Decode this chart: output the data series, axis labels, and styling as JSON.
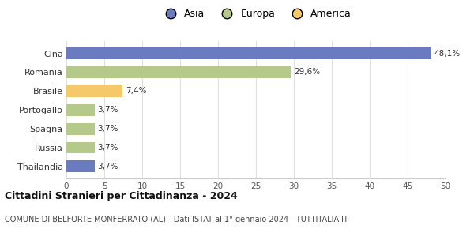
{
  "categories": [
    "Cina",
    "Romania",
    "Brasile",
    "Portogallo",
    "Spagna",
    "Russia",
    "Thailandia"
  ],
  "values": [
    48.1,
    29.6,
    7.4,
    3.7,
    3.7,
    3.7,
    3.7
  ],
  "labels": [
    "48,1%",
    "29,6%",
    "7,4%",
    "3,7%",
    "3,7%",
    "3,7%",
    "3,7%"
  ],
  "bar_colors": [
    "#6b7bbf",
    "#b5c98a",
    "#f5c96a",
    "#b5c98a",
    "#b5c98a",
    "#b5c98a",
    "#6b7bbf"
  ],
  "legend_labels": [
    "Asia",
    "Europa",
    "America"
  ],
  "legend_colors": [
    "#6b7bbf",
    "#b5c98a",
    "#f5c96a"
  ],
  "title": "Cittadini Stranieri per Cittadinanza - 2024",
  "subtitle": "COMUNE DI BELFORTE MONFERRATO (AL) - Dati ISTAT al 1° gennaio 2024 - TUTTITALIA.IT",
  "xlim": [
    0,
    50
  ],
  "xticks": [
    0,
    5,
    10,
    15,
    20,
    25,
    30,
    35,
    40,
    45,
    50
  ],
  "background_color": "#ffffff",
  "grid_color": "#e0e0e0"
}
